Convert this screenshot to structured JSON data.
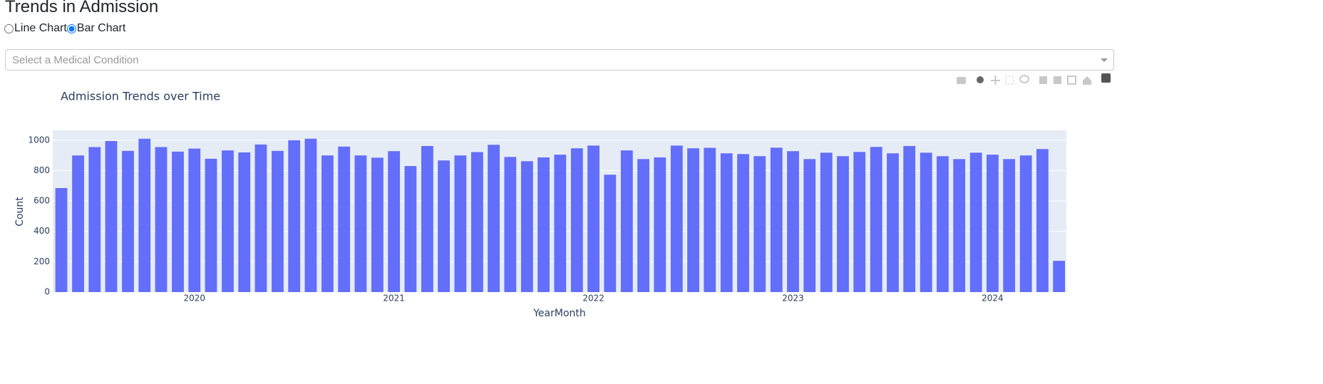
{
  "header": {
    "title": "Trends in Admission"
  },
  "radio": {
    "options": [
      "Line Chart",
      "Bar Chart"
    ],
    "selected": 1
  },
  "dropdown": {
    "placeholder": "Select a Medical Condition"
  },
  "chart_data": {
    "type": "bar",
    "title": "Admission Trends over Time",
    "x_label": "YearMonth",
    "y_label": "Count",
    "color": "#636efa",
    "grid": true,
    "x": [
      2019.333,
      2019.417,
      2019.5,
      2019.583,
      2019.667,
      2019.75,
      2019.833,
      2019.917,
      2020,
      2020.083,
      2020.167,
      2020.25,
      2020.333,
      2020.417,
      2020.5,
      2020.583,
      2020.667,
      2020.75,
      2020.833,
      2020.917,
      2021,
      2021.083,
      2021.167,
      2021.25,
      2021.333,
      2021.417,
      2021.5,
      2021.583,
      2021.667,
      2021.75,
      2021.833,
      2021.917,
      2022,
      2022.083,
      2022.167,
      2022.25,
      2022.333,
      2022.417,
      2022.5,
      2022.583,
      2022.667,
      2022.75,
      2022.833,
      2022.917,
      2023,
      2023.083,
      2023.167,
      2023.25,
      2023.333,
      2023.417,
      2023.5,
      2023.583,
      2023.667,
      2023.75,
      2023.833,
      2023.917,
      2024,
      2024.083,
      2024.167,
      2024.25,
      2024.333
    ],
    "values": [
      685,
      900,
      955,
      995,
      930,
      1010,
      955,
      925,
      945,
      878,
      933,
      920,
      972,
      930,
      1000,
      1010,
      900,
      958,
      900,
      885,
      928,
      830,
      962,
      867,
      900,
      922,
      970,
      890,
      862,
      887,
      905,
      947,
      965,
      773,
      933,
      876,
      887,
      965,
      947,
      950,
      914,
      909,
      895,
      951,
      928,
      876,
      918,
      895,
      923,
      956,
      914,
      962,
      918,
      895,
      876,
      918,
      905,
      876,
      900,
      942,
      206
    ],
    "xlim": [
      2019.29,
      2024.37
    ],
    "xticks": [
      2020,
      2021,
      2022,
      2023,
      2024
    ],
    "ylim": [
      0,
      1065
    ],
    "yticks": [
      0,
      200,
      400,
      600,
      800,
      1000
    ]
  }
}
